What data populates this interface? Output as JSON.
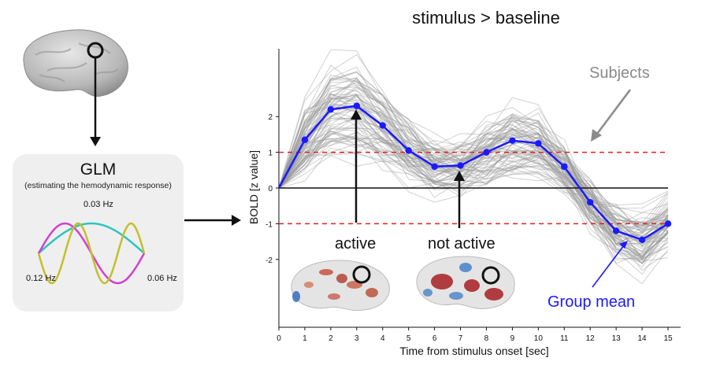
{
  "glm": {
    "title": "GLM",
    "subtitle": "(estimating the hemodynamic response)",
    "waves": [
      {
        "label": "0.03 Hz",
        "color": "#2ec4c0",
        "frequency_hz": 0.03
      },
      {
        "label": "0.06 Hz",
        "color": "#d23fd2",
        "frequency_hz": 0.06
      },
      {
        "label": "0.12 Hz",
        "color": "#c3bf2b",
        "frequency_hz": 0.12
      }
    ]
  },
  "annotations": {
    "active": "active",
    "not_active": "not active",
    "subjects": "Subjects",
    "group_mean": "Group mean"
  },
  "colors": {
    "group_mean": "#1a1aff",
    "subjects": "#9a9a9a",
    "threshold": "#e02020",
    "subjects_label": "#8a8a8a"
  },
  "chart_data": {
    "type": "line",
    "title": "stimulus > baseline",
    "xlabel": "Time from stimulus onset [sec]",
    "ylabel": "BOLD [z value]",
    "x": [
      0,
      1,
      2,
      3,
      4,
      5,
      6,
      7,
      8,
      9,
      10,
      11,
      12,
      13,
      14,
      15
    ],
    "xticks": [
      "0",
      "1",
      "2",
      "3",
      "4",
      "5",
      "6",
      "7",
      "8",
      "9",
      "10",
      "11",
      "12",
      "13",
      "14",
      "15"
    ],
    "yticks": [
      -2,
      -1,
      0,
      1,
      2
    ],
    "ylim": [
      -3.9,
      3.9
    ],
    "xlim": [
      0,
      16
    ],
    "thresholds": [
      1,
      -1
    ],
    "series": [
      {
        "name": "Group mean",
        "values": [
          0,
          1.35,
          2.2,
          2.3,
          1.75,
          1.05,
          0.6,
          0.63,
          1.0,
          1.33,
          1.25,
          0.6,
          -0.4,
          -1.2,
          -1.45,
          -1.0
        ]
      },
      {
        "name": "Subjects",
        "values": [
          0,
          1.35,
          2.2,
          2.3,
          1.75,
          1.05,
          0.6,
          0.63,
          1.0,
          1.33,
          1.25,
          0.6,
          -0.4,
          -1.2,
          -1.45,
          -1.0
        ]
      }
    ],
    "grid": false
  }
}
